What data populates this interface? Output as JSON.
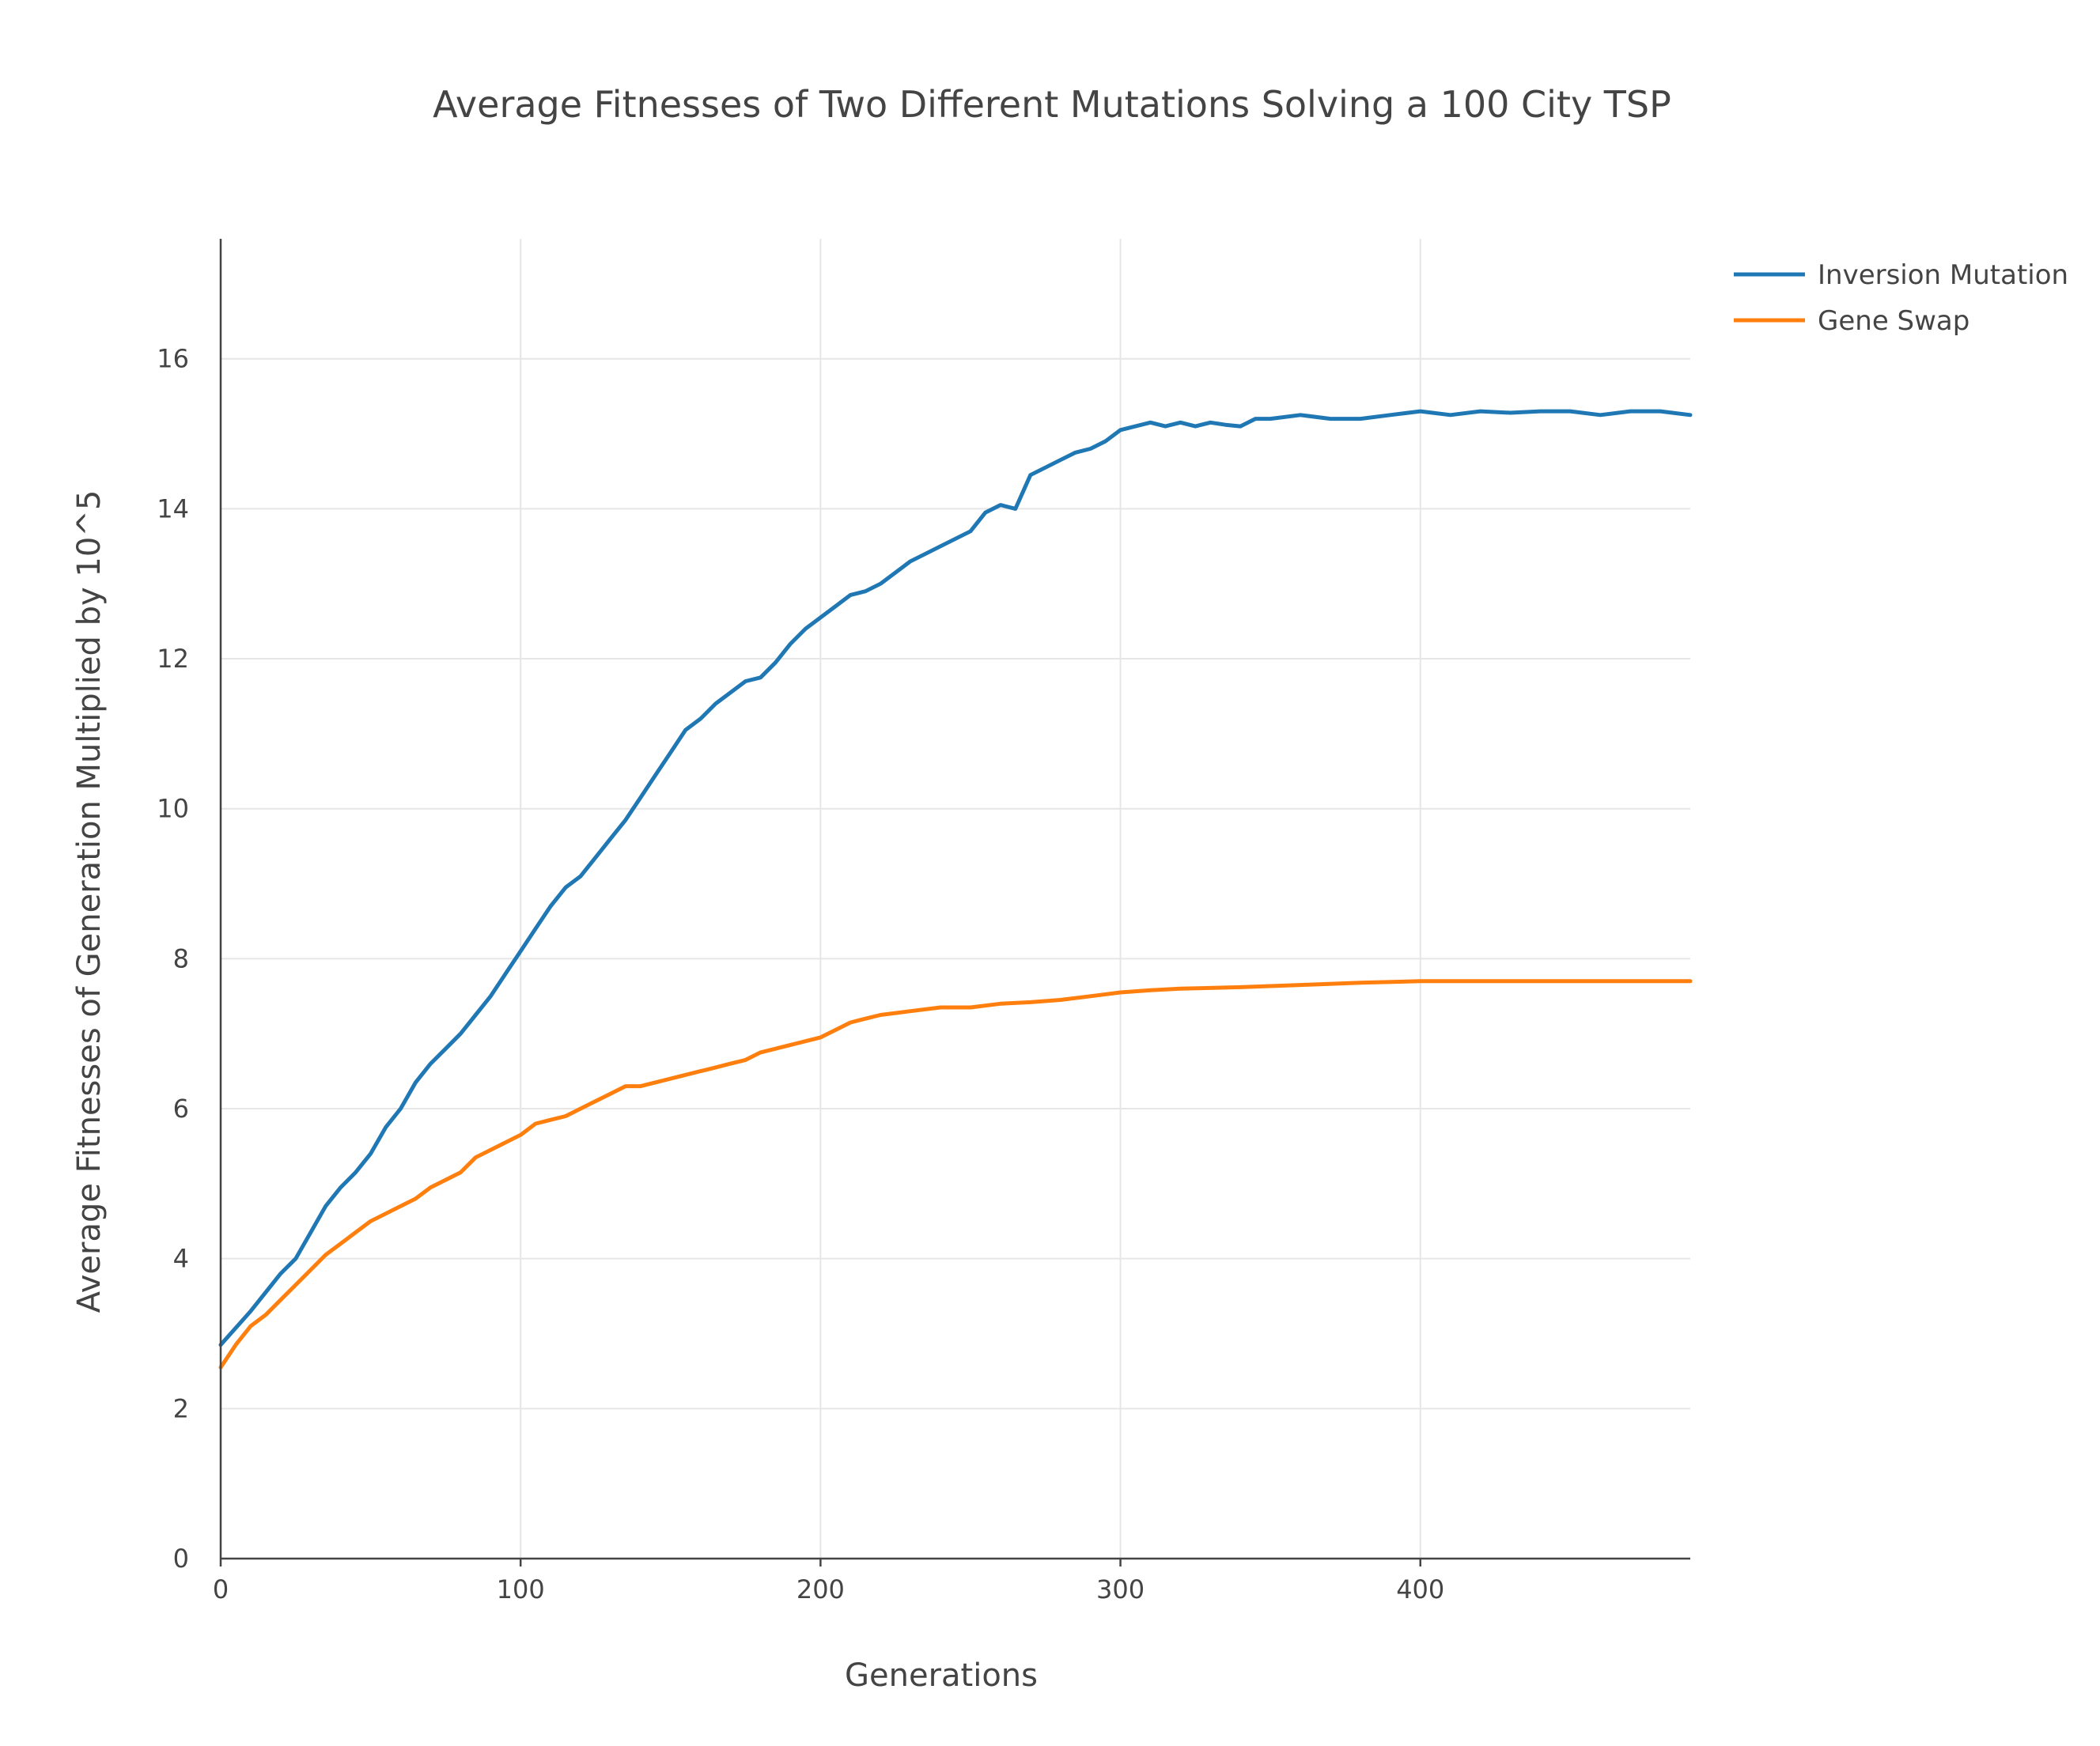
{
  "chart_data": {
    "type": "line",
    "title": "Average Fitnesses of Two Different Mutations Solving a 100 City TSP",
    "xlabel": "Generations",
    "ylabel": "Average Fitnesses of Generation Multiplied by 10^5",
    "xlim": [
      0,
      490
    ],
    "ylim": [
      0,
      17.6
    ],
    "x_ticks": [
      0,
      100,
      200,
      300,
      400
    ],
    "x_tick_labels": [
      "0",
      "100",
      "200",
      "300",
      "400"
    ],
    "y_ticks": [
      0,
      2,
      4,
      6,
      8,
      10,
      12,
      14,
      16
    ],
    "y_tick_labels": [
      "0",
      "2",
      "4",
      "6",
      "8",
      "10",
      "12",
      "14",
      "16"
    ],
    "grid": true,
    "legend_position": "top-right",
    "series": [
      {
        "name": "Inversion Mutation",
        "color": "#1f77b4",
        "x": [
          0,
          10,
          20,
          25,
          30,
          35,
          40,
          45,
          50,
          55,
          60,
          65,
          70,
          75,
          80,
          85,
          90,
          95,
          100,
          105,
          110,
          115,
          120,
          125,
          130,
          135,
          140,
          145,
          150,
          155,
          160,
          165,
          170,
          175,
          180,
          185,
          190,
          195,
          200,
          205,
          210,
          215,
          220,
          225,
          230,
          235,
          240,
          245,
          250,
          255,
          260,
          265,
          270,
          275,
          280,
          285,
          290,
          295,
          300,
          305,
          310,
          315,
          320,
          325,
          330,
          335,
          340,
          345,
          350,
          360,
          370,
          380,
          390,
          400,
          410,
          420,
          430,
          440,
          450,
          460,
          470,
          480,
          490
        ],
        "values": [
          2.85,
          3.3,
          3.8,
          4.0,
          4.35,
          4.7,
          4.95,
          5.15,
          5.4,
          5.75,
          6.0,
          6.35,
          6.6,
          6.8,
          7.0,
          7.25,
          7.5,
          7.8,
          8.1,
          8.4,
          8.7,
          8.95,
          9.1,
          9.35,
          9.6,
          9.85,
          10.15,
          10.45,
          10.75,
          11.05,
          11.2,
          11.4,
          11.55,
          11.7,
          11.75,
          11.95,
          12.2,
          12.4,
          12.55,
          12.7,
          12.85,
          12.9,
          13.0,
          13.15,
          13.3,
          13.4,
          13.5,
          13.6,
          13.7,
          13.95,
          14.05,
          14.0,
          14.45,
          14.55,
          14.65,
          14.75,
          14.8,
          14.9,
          15.05,
          15.1,
          15.15,
          15.1,
          15.15,
          15.1,
          15.15,
          15.12,
          15.1,
          15.2,
          15.2,
          15.25,
          15.2,
          15.2,
          15.25,
          15.3,
          15.25,
          15.3,
          15.28,
          15.3,
          15.3,
          15.25,
          15.3,
          15.3,
          15.25
        ]
      },
      {
        "name": "Gene Swap",
        "color": "#ff7f0e",
        "x": [
          0,
          5,
          10,
          15,
          20,
          25,
          30,
          35,
          40,
          45,
          50,
          55,
          60,
          65,
          70,
          75,
          80,
          85,
          90,
          95,
          100,
          105,
          110,
          115,
          120,
          125,
          130,
          135,
          140,
          145,
          150,
          155,
          160,
          165,
          170,
          175,
          180,
          185,
          190,
          195,
          200,
          205,
          210,
          215,
          220,
          230,
          240,
          250,
          260,
          270,
          280,
          290,
          300,
          310,
          320,
          340,
          360,
          380,
          400,
          420,
          440,
          460,
          480,
          490
        ],
        "values": [
          2.55,
          2.85,
          3.1,
          3.25,
          3.45,
          3.65,
          3.85,
          4.05,
          4.2,
          4.35,
          4.5,
          4.6,
          4.7,
          4.8,
          4.95,
          5.05,
          5.15,
          5.35,
          5.45,
          5.55,
          5.65,
          5.8,
          5.85,
          5.9,
          6.0,
          6.1,
          6.2,
          6.3,
          6.3,
          6.35,
          6.4,
          6.45,
          6.5,
          6.55,
          6.6,
          6.65,
          6.75,
          6.8,
          6.85,
          6.9,
          6.95,
          7.05,
          7.15,
          7.2,
          7.25,
          7.3,
          7.35,
          7.35,
          7.4,
          7.42,
          7.45,
          7.5,
          7.55,
          7.58,
          7.6,
          7.62,
          7.65,
          7.68,
          7.7,
          7.7,
          7.7,
          7.7,
          7.7,
          7.7
        ]
      }
    ]
  }
}
